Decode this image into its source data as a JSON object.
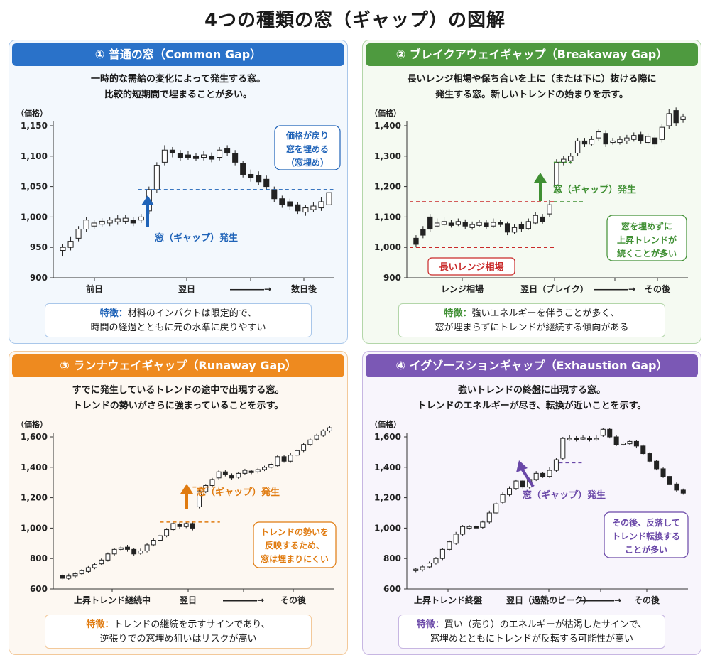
{
  "title": "4つの種類の窓（ギャップ）の図解",
  "chart_data": [
    {
      "type": "candlestick",
      "title": "① 普通の窓（Common Gap）",
      "description": [
        "一時的な需給の変化によって発生する窓。",
        "比較的短期間で埋まることが多い。"
      ],
      "ylabel": "（価格）",
      "ylim": [
        900,
        1150
      ],
      "yticks": [
        900,
        950,
        1000,
        1050,
        1100,
        1150
      ],
      "xlabels": [
        "前日",
        "翌日",
        "――――→",
        "数日後"
      ],
      "gap_label": "窓（ギャップ）発生",
      "gap_level": 1045,
      "callout": [
        "価格が戻り",
        "窓を埋める",
        "（窓埋め）"
      ],
      "feature_label": "特徴：",
      "feature_lines": [
        "材料のインパクトは限定的で、",
        "時間の経過とともに元の水準に戻りやすい"
      ],
      "candles": [
        [
          945,
          950,
          935,
          955
        ],
        [
          950,
          960,
          945,
          968
        ],
        [
          965,
          980,
          960,
          985
        ],
        [
          980,
          995,
          975,
          1000
        ],
        [
          985,
          990,
          980,
          995
        ],
        [
          988,
          993,
          983,
          998
        ],
        [
          990,
          995,
          985,
          1000
        ],
        [
          992,
          997,
          987,
          1003
        ],
        [
          993,
          998,
          988,
          1003
        ],
        [
          995,
          990,
          985,
          1000
        ],
        [
          995,
          1000,
          990,
          1005
        ],
        [
          1010,
          1045,
          1005,
          1050
        ],
        [
          1045,
          1085,
          1040,
          1090
        ],
        [
          1090,
          1110,
          1085,
          1118
        ],
        [
          1110,
          1105,
          1098,
          1115
        ],
        [
          1105,
          1098,
          1092,
          1110
        ],
        [
          1102,
          1098,
          1094,
          1108
        ],
        [
          1100,
          1096,
          1092,
          1105
        ],
        [
          1098,
          1102,
          1093,
          1108
        ],
        [
          1100,
          1095,
          1090,
          1106
        ],
        [
          1098,
          1110,
          1093,
          1115
        ],
        [
          1112,
          1105,
          1100,
          1118
        ],
        [
          1105,
          1090,
          1085,
          1110
        ],
        [
          1088,
          1070,
          1065,
          1092
        ],
        [
          1070,
          1065,
          1058,
          1078
        ],
        [
          1068,
          1058,
          1052,
          1075
        ],
        [
          1062,
          1050,
          1044,
          1068
        ],
        [
          1045,
          1030,
          1025,
          1050
        ],
        [
          1030,
          1020,
          1015,
          1035
        ],
        [
          1025,
          1018,
          1012,
          1030
        ],
        [
          1020,
          1010,
          1005,
          1025
        ],
        [
          1008,
          1015,
          1002,
          1020
        ],
        [
          1012,
          1018,
          1008,
          1025
        ],
        [
          1015,
          1025,
          1010,
          1032
        ],
        [
          1020,
          1040,
          1015,
          1045
        ]
      ]
    },
    {
      "type": "candlestick",
      "title": "② ブレイクアウェイギャップ（Breakaway Gap）",
      "description": [
        "長いレンジ相場や保ち合いを上に（または下に）抜ける際に",
        "発生する窓。新しいトレンドの始まりを示す。"
      ],
      "ylabel": "（価格）",
      "ylim": [
        900,
        1400
      ],
      "yticks": [
        900,
        1000,
        1100,
        1200,
        1300,
        1400
      ],
      "xlabels": [
        "レンジ相場",
        "翌日（ブレイク）",
        "――――→",
        "その後"
      ],
      "gap_label": "窓（ギャップ）発生",
      "gap_level": 1150,
      "range_label": "長いレンジ相場",
      "range_high": 1150,
      "range_low": 1000,
      "callout": [
        "窓を埋めずに",
        "上昇トレンドが",
        "続くことが多い"
      ],
      "feature_label": "特徴：",
      "feature_lines": [
        "強いエネルギーを伴うことが多く、",
        "窓が埋まらずにトレンドが継続する傾向がある"
      ],
      "candles": [
        [
          1030,
          1010,
          1000,
          1040
        ],
        [
          1060,
          1040,
          1030,
          1070
        ],
        [
          1100,
          1060,
          1050,
          1110
        ],
        [
          1070,
          1080,
          1065,
          1095
        ],
        [
          1075,
          1085,
          1068,
          1100
        ],
        [
          1080,
          1072,
          1065,
          1090
        ],
        [
          1075,
          1085,
          1070,
          1095
        ],
        [
          1082,
          1070,
          1060,
          1092
        ],
        [
          1065,
          1075,
          1058,
          1085
        ],
        [
          1072,
          1082,
          1066,
          1090
        ],
        [
          1080,
          1068,
          1060,
          1090
        ],
        [
          1070,
          1082,
          1064,
          1095
        ],
        [
          1082,
          1075,
          1068,
          1090
        ],
        [
          1078,
          1050,
          1040,
          1085
        ],
        [
          1050,
          1065,
          1045,
          1075
        ],
        [
          1075,
          1060,
          1050,
          1085
        ],
        [
          1062,
          1085,
          1058,
          1095
        ],
        [
          1080,
          1105,
          1075,
          1115
        ],
        [
          1100,
          1085,
          1078,
          1110
        ],
        [
          1110,
          1140,
          1100,
          1155
        ],
        [
          1205,
          1280,
          1195,
          1290
        ],
        [
          1280,
          1290,
          1270,
          1300
        ],
        [
          1285,
          1300,
          1275,
          1310
        ],
        [
          1310,
          1350,
          1300,
          1360
        ],
        [
          1350,
          1340,
          1330,
          1360
        ],
        [
          1340,
          1355,
          1335,
          1365
        ],
        [
          1360,
          1380,
          1350,
          1390
        ],
        [
          1375,
          1340,
          1330,
          1385
        ],
        [
          1345,
          1350,
          1338,
          1360
        ],
        [
          1345,
          1355,
          1338,
          1365
        ],
        [
          1350,
          1360,
          1340,
          1370
        ],
        [
          1355,
          1368,
          1348,
          1378
        ],
        [
          1370,
          1350,
          1342,
          1380
        ],
        [
          1345,
          1365,
          1338,
          1375
        ],
        [
          1360,
          1340,
          1325,
          1370
        ],
        [
          1355,
          1395,
          1345,
          1405
        ],
        [
          1400,
          1440,
          1390,
          1455
        ],
        [
          1450,
          1410,
          1400,
          1460
        ],
        [
          1420,
          1430,
          1410,
          1440
        ]
      ]
    },
    {
      "type": "candlestick",
      "title": "③ ランナウェイギャップ（Runaway Gap）",
      "description": [
        "すでに発生しているトレンドの途中で出現する窓。",
        "トレンドの勢いがさらに強まっていることを示す。"
      ],
      "ylabel": "（価格）",
      "ylim": [
        600,
        1600
      ],
      "yticks": [
        600,
        800,
        1000,
        1200,
        1400,
        1600
      ],
      "xlabels": [
        "上昇トレンド継続中",
        "翌日",
        "――――→",
        "その後"
      ],
      "gap_label": "窓（ギャップ）発生",
      "gap_level_low": 1040,
      "gap_level_high": 1270,
      "callout": [
        "トレンドの勢いを",
        "反映するため、",
        "窓は埋まりにくい"
      ],
      "feature_label": "特徴：",
      "feature_lines": [
        "トレンドの継続を示すサインであり、",
        "逆張りでの窓埋め狙いはリスクが高い"
      ],
      "candles": [
        [
          690,
          670,
          660,
          700
        ],
        [
          670,
          685,
          660,
          700
        ],
        [
          685,
          700,
          675,
          710
        ],
        [
          700,
          720,
          690,
          730
        ],
        [
          715,
          740,
          705,
          750
        ],
        [
          740,
          760,
          730,
          770
        ],
        [
          765,
          790,
          755,
          800
        ],
        [
          790,
          830,
          780,
          840
        ],
        [
          830,
          860,
          820,
          870
        ],
        [
          860,
          870,
          850,
          885
        ],
        [
          875,
          860,
          845,
          890
        ],
        [
          860,
          830,
          815,
          870
        ],
        [
          835,
          850,
          825,
          865
        ],
        [
          850,
          890,
          840,
          900
        ],
        [
          890,
          920,
          880,
          935
        ],
        [
          920,
          950,
          910,
          965
        ],
        [
          950,
          990,
          940,
          1000
        ],
        [
          990,
          1030,
          980,
          1040
        ],
        [
          1025,
          1010,
          995,
          1040
        ],
        [
          1010,
          1030,
          1000,
          1040
        ],
        [
          1030,
          1000,
          985,
          1045
        ],
        [
          1140,
          1240,
          1130,
          1250
        ],
        [
          1240,
          1280,
          1230,
          1290
        ],
        [
          1280,
          1320,
          1270,
          1330
        ],
        [
          1330,
          1370,
          1320,
          1380
        ],
        [
          1370,
          1350,
          1340,
          1380
        ],
        [
          1345,
          1330,
          1320,
          1360
        ],
        [
          1335,
          1360,
          1325,
          1370
        ],
        [
          1360,
          1380,
          1350,
          1390
        ],
        [
          1375,
          1365,
          1355,
          1385
        ],
        [
          1370,
          1385,
          1360,
          1395
        ],
        [
          1385,
          1400,
          1375,
          1410
        ],
        [
          1400,
          1420,
          1390,
          1430
        ],
        [
          1410,
          1470,
          1400,
          1480
        ],
        [
          1470,
          1440,
          1430,
          1480
        ],
        [
          1440,
          1480,
          1430,
          1495
        ],
        [
          1480,
          1510,
          1470,
          1520
        ],
        [
          1510,
          1550,
          1500,
          1560
        ],
        [
          1550,
          1580,
          1540,
          1590
        ],
        [
          1585,
          1610,
          1575,
          1620
        ],
        [
          1610,
          1640,
          1600,
          1650
        ],
        [
          1640,
          1660,
          1630,
          1670
        ]
      ]
    },
    {
      "type": "candlestick",
      "title": "④ イグゾースションギャップ（Exhaustion Gap）",
      "description": [
        "強いトレンドの終盤に出現する窓。",
        "トレンドのエネルギーが尽き、転換が近いことを示す。"
      ],
      "ylabel": "（価格）",
      "ylim": [
        600,
        1600
      ],
      "yticks": [
        600,
        800,
        1000,
        1200,
        1400,
        1600
      ],
      "xlabels": [
        "上昇トレンド終盤",
        "翌日（過熱のピーク）",
        "――――→",
        "その後"
      ],
      "gap_label": "窓（ギャップ）発生",
      "gap_level": 1430,
      "callout": [
        "その後、反落して",
        "トレンド転換する",
        "ことが多い"
      ],
      "feature_label": "特徴：",
      "feature_lines": [
        "買い（売り）のエネルギーが枯渇したサインで、",
        "窓埋めとともにトレンドが反転する可能性が高い"
      ],
      "candles": [
        [
          720,
          730,
          710,
          740
        ],
        [
          725,
          745,
          715,
          755
        ],
        [
          745,
          770,
          735,
          780
        ],
        [
          770,
          800,
          760,
          810
        ],
        [
          800,
          860,
          790,
          870
        ],
        [
          860,
          910,
          850,
          920
        ],
        [
          900,
          960,
          890,
          975
        ],
        [
          960,
          1010,
          950,
          1020
        ],
        [
          1000,
          1010,
          990,
          1020
        ],
        [
          1010,
          1005,
          995,
          1020
        ],
        [
          1005,
          1040,
          995,
          1050
        ],
        [
          1040,
          1100,
          1030,
          1115
        ],
        [
          1100,
          1160,
          1090,
          1175
        ],
        [
          1170,
          1220,
          1160,
          1235
        ],
        [
          1220,
          1260,
          1210,
          1275
        ],
        [
          1260,
          1310,
          1250,
          1320
        ],
        [
          1310,
          1270,
          1260,
          1320
        ],
        [
          1270,
          1320,
          1260,
          1330
        ],
        [
          1320,
          1360,
          1310,
          1375
        ],
        [
          1360,
          1340,
          1330,
          1370
        ],
        [
          1340,
          1380,
          1330,
          1400
        ],
        [
          1380,
          1450,
          1370,
          1460
        ],
        [
          1460,
          1590,
          1450,
          1600
        ],
        [
          1590,
          1590,
          1575,
          1610
        ],
        [
          1590,
          1585,
          1570,
          1605
        ],
        [
          1590,
          1595,
          1578,
          1610
        ],
        [
          1590,
          1585,
          1570,
          1605
        ],
        [
          1590,
          1590,
          1575,
          1610
        ],
        [
          1610,
          1650,
          1600,
          1660
        ],
        [
          1650,
          1600,
          1590,
          1660
        ],
        [
          1600,
          1550,
          1540,
          1610
        ],
        [
          1550,
          1560,
          1540,
          1570
        ],
        [
          1555,
          1570,
          1545,
          1580
        ],
        [
          1570,
          1540,
          1525,
          1580
        ],
        [
          1540,
          1490,
          1480,
          1550
        ],
        [
          1490,
          1440,
          1430,
          1500
        ],
        [
          1440,
          1390,
          1380,
          1450
        ],
        [
          1390,
          1340,
          1330,
          1400
        ],
        [
          1340,
          1290,
          1280,
          1350
        ],
        [
          1290,
          1250,
          1240,
          1300
        ],
        [
          1250,
          1230,
          1220,
          1260
        ]
      ]
    }
  ],
  "colors": {
    "p1": {
      "head": "#2a72c9",
      "border": "#a9c7ea",
      "bg": "#f3f8fd",
      "accent": "#1f63b8"
    },
    "p2": {
      "head": "#4e9a3f",
      "border": "#b3d6a9",
      "bg": "#f5faf2",
      "accent": "#3f8f33",
      "range": "#c92a2a"
    },
    "p3": {
      "head": "#ee8a1f",
      "border": "#f3c99a",
      "bg": "#fdf8f2",
      "accent": "#e07b10"
    },
    "p4": {
      "head": "#7b58b5",
      "border": "#c7b6e2",
      "bg": "#f8f5fc",
      "accent": "#6a48a8"
    }
  }
}
